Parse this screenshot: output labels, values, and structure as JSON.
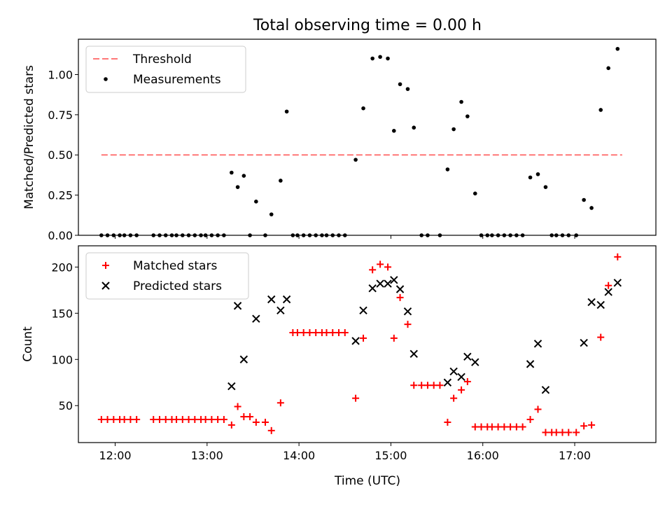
{
  "title": "Total observing time = 0.00 h",
  "xlabel": "Time (UTC)",
  "chart_data": [
    {
      "type": "scatter",
      "ylabel": "Matched/Predicted stars",
      "ylim": [
        0,
        1.22
      ],
      "yticks": [
        "0.00",
        "0.25",
        "0.50",
        "0.75",
        "1.00"
      ],
      "xlim": [
        "11:36",
        "17:53"
      ],
      "xticks": [
        "12:00",
        "13:00",
        "14:00",
        "15:00",
        "16:00",
        "17:00"
      ],
      "legend_position": "upper-left",
      "threshold": {
        "name": "Threshold",
        "value": 0.5,
        "x_range": [
          "11:51",
          "17:31"
        ],
        "color": "#ff7777"
      },
      "series": [
        {
          "name": "Measurements",
          "color": "#000000",
          "points": [
            [
              "11:51",
              0
            ],
            [
              "11:55",
              0
            ],
            [
              "11:59",
              0
            ],
            [
              "12:03",
              0
            ],
            [
              "12:06",
              0
            ],
            [
              "12:10",
              0
            ],
            [
              "12:14",
              0
            ],
            [
              "12:25",
              0
            ],
            [
              "12:29",
              0
            ],
            [
              "12:33",
              0
            ],
            [
              "12:37",
              0
            ],
            [
              "12:40",
              0
            ],
            [
              "12:44",
              0
            ],
            [
              "12:48",
              0
            ],
            [
              "12:52",
              0
            ],
            [
              "12:56",
              0
            ],
            [
              "12:59",
              0
            ],
            [
              "13:03",
              0
            ],
            [
              "13:07",
              0
            ],
            [
              "13:11",
              0
            ],
            [
              "13:16",
              0.39
            ],
            [
              "13:20",
              0.3
            ],
            [
              "13:24",
              0.37
            ],
            [
              "13:28",
              0
            ],
            [
              "13:32",
              0.21
            ],
            [
              "13:38",
              0
            ],
            [
              "13:42",
              0.13
            ],
            [
              "13:48",
              0.34
            ],
            [
              "13:52",
              0.77
            ],
            [
              "13:56",
              0
            ],
            [
              "13:59",
              0
            ],
            [
              "14:03",
              0
            ],
            [
              "14:07",
              0
            ],
            [
              "14:11",
              0
            ],
            [
              "14:15",
              0
            ],
            [
              "14:18",
              0
            ],
            [
              "14:22",
              0
            ],
            [
              "14:26",
              0
            ],
            [
              "14:30",
              0
            ],
            [
              "14:37",
              0.47
            ],
            [
              "14:42",
              0.79
            ],
            [
              "14:48",
              1.1
            ],
            [
              "14:53",
              1.11
            ],
            [
              "14:58",
              1.1
            ],
            [
              "15:02",
              0.65
            ],
            [
              "15:06",
              0.94
            ],
            [
              "15:11",
              0.91
            ],
            [
              "15:15",
              0.67
            ],
            [
              "15:20",
              0
            ],
            [
              "15:24",
              0
            ],
            [
              "15:32",
              0
            ],
            [
              "15:37",
              0.41
            ],
            [
              "15:41",
              0.66
            ],
            [
              "15:46",
              0.83
            ],
            [
              "15:50",
              0.74
            ],
            [
              "15:55",
              0.26
            ],
            [
              "15:59",
              0
            ],
            [
              "16:03",
              0
            ],
            [
              "16:06",
              0
            ],
            [
              "16:10",
              0
            ],
            [
              "16:14",
              0
            ],
            [
              "16:18",
              0
            ],
            [
              "16:22",
              0
            ],
            [
              "16:26",
              0
            ],
            [
              "16:31",
              0.36
            ],
            [
              "16:36",
              0.38
            ],
            [
              "16:41",
              0.3
            ],
            [
              "16:45",
              0
            ],
            [
              "16:48",
              0
            ],
            [
              "16:52",
              0
            ],
            [
              "16:56",
              0
            ],
            [
              "17:01",
              0
            ],
            [
              "17:06",
              0.22
            ],
            [
              "17:11",
              0.17
            ],
            [
              "17:17",
              0.78
            ],
            [
              "17:22",
              1.04
            ],
            [
              "17:28",
              1.16
            ]
          ]
        }
      ]
    },
    {
      "type": "scatter",
      "ylabel": "Count",
      "ylim": [
        10,
        223
      ],
      "yticks": [
        "50",
        "100",
        "150",
        "200"
      ],
      "xlim": [
        "11:36",
        "17:53"
      ],
      "xticks": [
        "12:00",
        "13:00",
        "14:00",
        "15:00",
        "16:00",
        "17:00"
      ],
      "legend_position": "upper-left",
      "series": [
        {
          "name": "Matched stars",
          "marker": "+",
          "color": "#ff0000",
          "points": [
            [
              "11:51",
              35
            ],
            [
              "11:55",
              35
            ],
            [
              "11:59",
              35
            ],
            [
              "12:03",
              35
            ],
            [
              "12:06",
              35
            ],
            [
              "12:10",
              35
            ],
            [
              "12:14",
              35
            ],
            [
              "12:25",
              35
            ],
            [
              "12:29",
              35
            ],
            [
              "12:33",
              35
            ],
            [
              "12:37",
              35
            ],
            [
              "12:40",
              35
            ],
            [
              "12:44",
              35
            ],
            [
              "12:48",
              35
            ],
            [
              "12:52",
              35
            ],
            [
              "12:56",
              35
            ],
            [
              "12:59",
              35
            ],
            [
              "13:03",
              35
            ],
            [
              "13:07",
              35
            ],
            [
              "13:11",
              35
            ],
            [
              "13:16",
              29
            ],
            [
              "13:20",
              49
            ],
            [
              "13:24",
              38
            ],
            [
              "13:28",
              38
            ],
            [
              "13:32",
              32
            ],
            [
              "13:38",
              32
            ],
            [
              "13:42",
              23
            ],
            [
              "13:48",
              53
            ],
            [
              "13:56",
              129
            ],
            [
              "13:59",
              129
            ],
            [
              "14:03",
              129
            ],
            [
              "14:07",
              129
            ],
            [
              "14:11",
              129
            ],
            [
              "14:15",
              129
            ],
            [
              "14:18",
              129
            ],
            [
              "14:22",
              129
            ],
            [
              "14:26",
              129
            ],
            [
              "14:30",
              129
            ],
            [
              "14:37",
              58
            ],
            [
              "14:42",
              123
            ],
            [
              "14:48",
              197
            ],
            [
              "14:53",
              203
            ],
            [
              "14:58",
              200
            ],
            [
              "15:02",
              123
            ],
            [
              "15:06",
              167
            ],
            [
              "15:11",
              138
            ],
            [
              "15:15",
              72
            ],
            [
              "15:20",
              72
            ],
            [
              "15:24",
              72
            ],
            [
              "15:28",
              72
            ],
            [
              "15:32",
              72
            ],
            [
              "15:37",
              32
            ],
            [
              "15:41",
              58
            ],
            [
              "15:46",
              67
            ],
            [
              "15:50",
              76
            ],
            [
              "15:55",
              27
            ],
            [
              "15:59",
              27
            ],
            [
              "16:03",
              27
            ],
            [
              "16:06",
              27
            ],
            [
              "16:10",
              27
            ],
            [
              "16:14",
              27
            ],
            [
              "16:18",
              27
            ],
            [
              "16:22",
              27
            ],
            [
              "16:26",
              27
            ],
            [
              "16:31",
              35
            ],
            [
              "16:36",
              46
            ],
            [
              "16:41",
              21
            ],
            [
              "16:45",
              21
            ],
            [
              "16:48",
              21
            ],
            [
              "16:52",
              21
            ],
            [
              "16:56",
              21
            ],
            [
              "17:01",
              21
            ],
            [
              "17:06",
              28
            ],
            [
              "17:11",
              29
            ],
            [
              "17:17",
              124
            ],
            [
              "17:22",
              180
            ],
            [
              "17:28",
              211
            ]
          ]
        },
        {
          "name": "Predicted stars",
          "marker": "x",
          "color": "#000000",
          "points": [
            [
              "13:16",
              71
            ],
            [
              "13:20",
              158
            ],
            [
              "13:24",
              100
            ],
            [
              "13:32",
              144
            ],
            [
              "13:42",
              165
            ],
            [
              "13:48",
              153
            ],
            [
              "13:52",
              165
            ],
            [
              "14:37",
              120
            ],
            [
              "14:42",
              153
            ],
            [
              "14:48",
              177
            ],
            [
              "14:53",
              182
            ],
            [
              "14:58",
              182
            ],
            [
              "15:02",
              186
            ],
            [
              "15:06",
              176
            ],
            [
              "15:11",
              152
            ],
            [
              "15:15",
              106
            ],
            [
              "15:37",
              75
            ],
            [
              "15:41",
              87
            ],
            [
              "15:46",
              81
            ],
            [
              "15:50",
              103
            ],
            [
              "15:55",
              97
            ],
            [
              "16:31",
              95
            ],
            [
              "16:36",
              117
            ],
            [
              "16:41",
              67
            ],
            [
              "17:06",
              118
            ],
            [
              "17:11",
              162
            ],
            [
              "17:17",
              159
            ],
            [
              "17:22",
              173
            ],
            [
              "17:28",
              183
            ]
          ]
        }
      ]
    }
  ]
}
